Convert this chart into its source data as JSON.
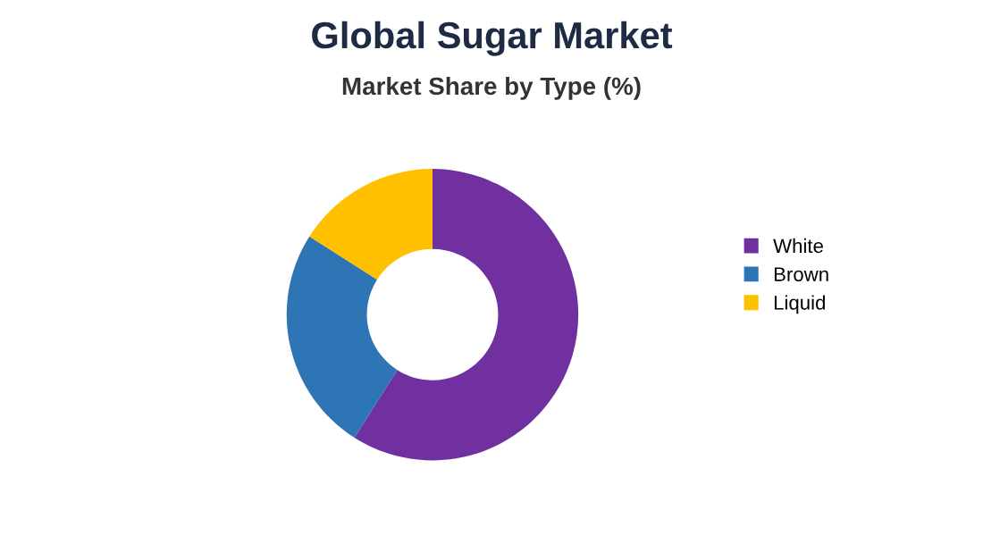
{
  "chart_data": {
    "type": "donut",
    "title": "Global Sugar Market",
    "subtitle": "Market Share by Type (%)",
    "categories": [
      "White",
      "Brown",
      "Liquid"
    ],
    "values": [
      59,
      25,
      16
    ],
    "colors": [
      "#7030a0",
      "#2e75b6",
      "#ffc000"
    ],
    "legend": "right"
  }
}
